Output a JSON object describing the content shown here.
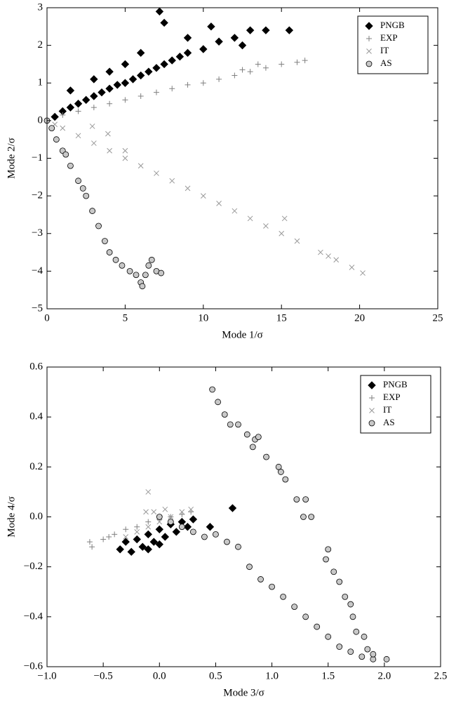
{
  "chart_data": [
    {
      "type": "scatter",
      "xlabel": "Mode 1/σ",
      "ylabel": "Mode 2/σ",
      "legend": "upper right",
      "xlim": [
        0,
        25
      ],
      "ylim": [
        -5,
        3
      ],
      "xticks": [
        0,
        5,
        10,
        15,
        20,
        25
      ],
      "yticks": [
        {
          "value": -5,
          "label": "−5"
        },
        {
          "value": -4,
          "label": "−4"
        },
        {
          "value": -3,
          "label": "−3"
        },
        {
          "value": -2,
          "label": "−2"
        },
        {
          "value": -1,
          "label": "−1"
        },
        0,
        1,
        2,
        3
      ],
      "series": [
        {
          "name": "PNGB",
          "color": "#000000",
          "marker": "diamond",
          "x": [
            0.5,
            1,
            1.5,
            2,
            2.5,
            3,
            3.5,
            4,
            4.5,
            5,
            5.5,
            6,
            6.5,
            7,
            7.5,
            8,
            8.5,
            9,
            10,
            11,
            12,
            13,
            14,
            15.5,
            7.2,
            7.5,
            6,
            5,
            3,
            1.5,
            10.5,
            12.5,
            9,
            4
          ],
          "values": [
            0.1,
            0.25,
            0.35,
            0.45,
            0.55,
            0.65,
            0.75,
            0.85,
            0.95,
            1.0,
            1.1,
            1.2,
            1.3,
            1.4,
            1.5,
            1.6,
            1.7,
            1.8,
            1.9,
            2.1,
            2.2,
            2.4,
            2.4,
            2.4,
            2.9,
            2.6,
            1.8,
            1.5,
            1.1,
            0.8,
            2.5,
            2.0,
            2.2,
            1.3
          ]
        },
        {
          "name": "EXP",
          "color": "#808080",
          "marker": "plus",
          "x": [
            1,
            2,
            3,
            4,
            5,
            6,
            7,
            8,
            9,
            10,
            11,
            12,
            13,
            14,
            15,
            16,
            16.5,
            12.5,
            13.5
          ],
          "values": [
            0.15,
            0.25,
            0.35,
            0.45,
            0.55,
            0.65,
            0.75,
            0.85,
            0.95,
            1.0,
            1.1,
            1.2,
            1.3,
            1.4,
            1.5,
            1.55,
            1.6,
            1.35,
            1.5
          ]
        },
        {
          "name": "IT",
          "color": "#999999",
          "marker": "cross",
          "x": [
            0.5,
            1,
            2,
            3,
            4,
            5,
            6,
            7,
            8,
            9,
            10,
            11,
            12,
            13,
            14,
            15,
            16,
            17.5,
            18,
            19.5,
            20.2,
            2.9,
            3.9,
            5,
            15.2,
            18.5
          ],
          "values": [
            -0.1,
            -0.2,
            -0.4,
            -0.6,
            -0.8,
            -1.0,
            -1.2,
            -1.4,
            -1.6,
            -1.8,
            -2.0,
            -2.2,
            -2.4,
            -2.6,
            -2.8,
            -3.0,
            -3.2,
            -3.5,
            -3.6,
            -3.9,
            -4.05,
            -0.15,
            -0.35,
            -0.8,
            -2.6,
            -3.7
          ]
        },
        {
          "name": "AS",
          "color": "#c8c8c8",
          "marker": "circle",
          "x": [
            0,
            0.3,
            0.6,
            1,
            1.5,
            2,
            2.5,
            2.9,
            3.3,
            3.7,
            4,
            4.4,
            4.8,
            5.3,
            5.7,
            6,
            6.1,
            6.5,
            6.7,
            7.0,
            7.3,
            6.3,
            1.2,
            2.3
          ],
          "values": [
            0,
            -0.2,
            -0.5,
            -0.8,
            -1.2,
            -1.6,
            -2.0,
            -2.4,
            -2.8,
            -3.2,
            -3.5,
            -3.7,
            -3.85,
            -4.0,
            -4.1,
            -4.3,
            -4.4,
            -3.85,
            -3.7,
            -4.0,
            -4.05,
            -4.1,
            -0.9,
            -1.8
          ]
        }
      ]
    },
    {
      "type": "scatter",
      "xlabel": "Mode 3/σ",
      "ylabel": "Mode 4/σ",
      "legend": "upper right",
      "xlim": [
        -1.0,
        2.5
      ],
      "ylim": [
        -0.6,
        0.6
      ],
      "xticks": [
        {
          "value": -1.0,
          "label": "−1.0"
        },
        {
          "value": -0.5,
          "label": "−0.5"
        },
        {
          "value": 0,
          "label": "0.0"
        },
        0.5,
        {
          "value": 1,
          "label": "1.0"
        },
        1.5,
        {
          "value": 2,
          "label": "2.0"
        },
        2.5
      ],
      "yticks": [
        {
          "value": -0.6,
          "label": "−0.6"
        },
        {
          "value": -0.4,
          "label": "−0.4"
        },
        {
          "value": -0.2,
          "label": "−0.2"
        },
        {
          "value": 0,
          "label": "0.0"
        },
        0.2,
        0.4,
        0.6
      ],
      "series": [
        {
          "name": "PNGB",
          "color": "#000000",
          "marker": "diamond",
          "x": [
            -0.35,
            -0.3,
            -0.25,
            -0.2,
            -0.15,
            -0.1,
            -0.05,
            0,
            0.05,
            0.1,
            0.15,
            0.2,
            0.25,
            -0.1,
            0.0,
            0.45,
            0.65,
            0.3
          ],
          "values": [
            -0.13,
            -0.1,
            -0.14,
            -0.09,
            -0.12,
            -0.07,
            -0.1,
            -0.05,
            -0.08,
            -0.03,
            -0.06,
            -0.02,
            -0.04,
            -0.13,
            -0.11,
            -0.04,
            0.035,
            -0.01
          ]
        },
        {
          "name": "EXP",
          "color": "#808080",
          "marker": "plus",
          "x": [
            -0.62,
            -0.5,
            -0.4,
            -0.3,
            -0.2,
            -0.1,
            0,
            0.1,
            0.2,
            0.28,
            -0.6,
            -0.45
          ],
          "values": [
            -0.1,
            -0.09,
            -0.07,
            -0.05,
            -0.04,
            -0.02,
            -0.01,
            0.0,
            0.01,
            0.02,
            -0.12,
            -0.08
          ]
        },
        {
          "name": "IT",
          "color": "#999999",
          "marker": "cross",
          "x": [
            -0.3,
            -0.2,
            -0.1,
            0,
            0.1,
            0.2,
            0.28,
            -0.1,
            -0.12,
            0.05,
            -0.05
          ],
          "values": [
            -0.08,
            -0.06,
            -0.04,
            -0.02,
            0.0,
            0.02,
            0.03,
            0.1,
            0.02,
            0.03,
            0.02
          ]
        },
        {
          "name": "AS",
          "color": "#c8c8c8",
          "marker": "circle",
          "x": [
            0,
            0.1,
            0.2,
            0.3,
            0.4,
            0.5,
            0.6,
            0.7,
            0.8,
            0.9,
            1.0,
            1.1,
            1.2,
            1.3,
            1.4,
            1.5,
            1.6,
            1.7,
            1.8,
            1.9,
            2.02,
            0.47,
            0.52,
            0.58,
            0.63,
            0.7,
            0.78,
            0.85,
            0.88,
            0.83,
            0.95,
            1.06,
            1.08,
            1.12,
            1.22,
            1.3,
            1.28,
            1.35,
            1.5,
            1.48,
            1.55,
            1.6,
            1.65,
            1.7,
            1.72,
            1.75,
            1.82,
            1.85,
            1.9
          ],
          "values": [
            0,
            -0.02,
            -0.04,
            -0.06,
            -0.08,
            -0.07,
            -0.1,
            -0.12,
            -0.2,
            -0.25,
            -0.28,
            -0.32,
            -0.36,
            -0.4,
            -0.44,
            -0.48,
            -0.52,
            -0.54,
            -0.56,
            -0.57,
            -0.57,
            0.51,
            0.46,
            0.41,
            0.37,
            0.37,
            0.33,
            0.31,
            0.32,
            0.28,
            0.24,
            0.2,
            0.18,
            0.15,
            0.07,
            0.07,
            0.0,
            0.0,
            -0.13,
            -0.17,
            -0.22,
            -0.26,
            -0.32,
            -0.35,
            -0.4,
            -0.46,
            -0.48,
            -0.53,
            -0.55
          ]
        }
      ]
    }
  ]
}
